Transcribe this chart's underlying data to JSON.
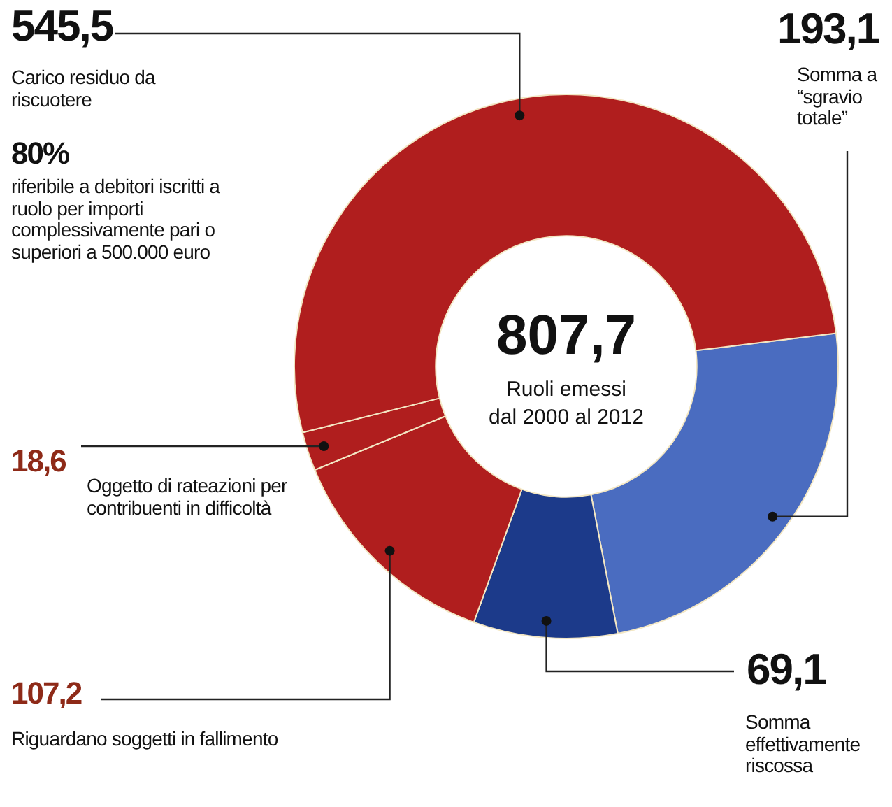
{
  "chart_data": {
    "type": "donut",
    "title": "807,7",
    "subtitle": "Ruoli emessi dal 2000 al 2012",
    "categories": [
      "Somma a “sgravio totale”",
      "Somma effettivamente riscossa",
      "Riguardano soggetti in fallimento",
      "Oggetto di rateazioni per contribuenti in difficoltà",
      null
    ],
    "values": [
      193.1,
      69.1,
      107.2,
      18.6,
      419.7
    ],
    "value_labels": [
      "193,1",
      "69,1",
      "107,2",
      "18,6",
      null
    ],
    "colors": [
      "#4a6cc0",
      "#1c3a8a",
      "#b01e1e",
      "#b01e1e",
      "#b01e1e"
    ],
    "annotations": [
      "545,5",
      "Carico residuo da riscuotere",
      "80%",
      "riferibile a debitori iscritti a ruolo per importi complessivamente pari o superiori a 500.000 euro"
    ],
    "legend": false
  }
}
